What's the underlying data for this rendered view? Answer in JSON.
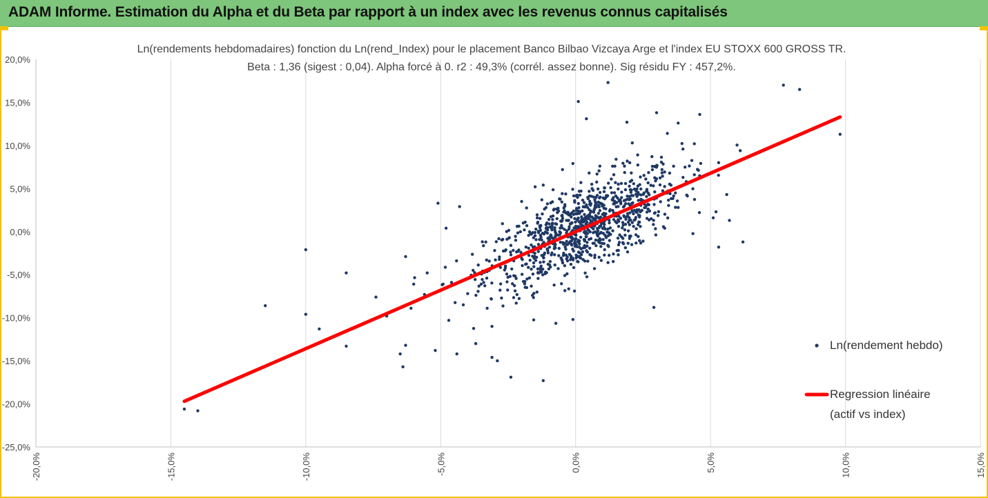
{
  "banner": {
    "title": "ADAM Informe. Estimation du Alpha et du Beta par rapport à un index avec les revenus connus capitalisés"
  },
  "colors": {
    "banner": "#7dc67b",
    "frame": "#f2c200",
    "points": "#1f3864",
    "regression": "#ff0000"
  },
  "chart_data": {
    "type": "scatter",
    "title": "Ln(rendements hebdomadaires) fonction du Ln(rend_Index)  pour le placement Banco Bilbao Vizcaya Arge et l'index EU STOXX 600 GROSS TR.",
    "subtitle": "Beta : 1,36 (sigest : 0,04).  Alpha forcé à 0. r2 : 49,3% (corrél. assez bonne). Sig résidu FY : 457,2%.",
    "xlabel": "",
    "ylabel": "",
    "xlim": [
      -20,
      15
    ],
    "ylim": [
      -25,
      20
    ],
    "x_ticks": [
      "-20,0%",
      "-15,0%",
      "-10,0%",
      "-5,0%",
      "0,0%",
      "5,0%",
      "10,0%",
      "15,0%"
    ],
    "y_ticks": [
      "20,0%",
      "15,0%",
      "10,0%",
      "5,0%",
      "0,0%",
      "-5,0%",
      "-10,0%",
      "-15,0%",
      "-20,0%",
      "-25,0%"
    ],
    "grid": "vertical",
    "legend_position": "right",
    "series": [
      {
        "name": "Ln(rendement hebdo)",
        "type": "scatter",
        "points": [
          [
            -14.5,
            -20.6
          ],
          [
            -14.0,
            -20.8
          ],
          [
            -11.5,
            -8.6
          ],
          [
            -10.0,
            -2.1
          ],
          [
            -10.0,
            -9.6
          ],
          [
            -9.5,
            -11.3
          ],
          [
            -8.5,
            -4.8
          ],
          [
            -8.5,
            -13.3
          ],
          [
            -7.4,
            -7.6
          ],
          [
            -7.0,
            -9.8
          ],
          [
            -6.5,
            -14.2
          ],
          [
            -6.4,
            -15.7
          ],
          [
            -6.3,
            -13.2
          ],
          [
            -6.3,
            -2.9
          ],
          [
            -6.1,
            -8.9
          ],
          [
            -5.5,
            -4.8
          ],
          [
            -5.1,
            3.3
          ],
          [
            -4.8,
            0.4
          ],
          [
            -4.4,
            -14.2
          ],
          [
            -4.3,
            2.9
          ],
          [
            -5.2,
            -13.8
          ],
          [
            -4.7,
            -10.3
          ],
          [
            -3.7,
            -13.0
          ],
          [
            -3.1,
            -11.0
          ],
          [
            -3.1,
            -14.6
          ],
          [
            -2.9,
            -15.0
          ],
          [
            -2.4,
            -16.9
          ],
          [
            -1.2,
            -17.3
          ],
          [
            -0.1,
            -10.2
          ],
          [
            2.9,
            -8.8
          ],
          [
            0.1,
            15.1
          ],
          [
            0.4,
            13.1
          ],
          [
            3.0,
            13.8
          ],
          [
            4.6,
            13.6
          ],
          [
            9.8,
            11.3
          ],
          [
            7.7,
            17.0
          ],
          [
            8.3,
            16.5
          ],
          [
            1.2,
            17.3
          ],
          [
            6.1,
            9.4
          ],
          [
            5.3,
            8.0
          ],
          [
            5.1,
            1.6
          ],
          [
            5.6,
            4.3
          ],
          [
            5.7,
            1.3
          ],
          [
            6.2,
            -1.2
          ],
          [
            5.3,
            -1.8
          ],
          [
            3.4,
            11.4
          ],
          [
            3.8,
            12.6
          ],
          [
            2.1,
            10.3
          ],
          [
            1.9,
            12.7
          ],
          [
            4.4,
            10.2
          ],
          [
            -2.0,
            3.5
          ],
          [
            -1.5,
            5.2
          ],
          [
            -1.2,
            5.4
          ],
          [
            -3.5,
            -6.1
          ],
          [
            -2.8,
            -6.8
          ],
          [
            -2.0,
            -3.1
          ],
          [
            -1.8,
            -5.5
          ],
          [
            -1.3,
            -4.2
          ],
          [
            -0.9,
            -2.7
          ],
          [
            -0.7,
            -0.4
          ],
          [
            -0.5,
            1.9
          ],
          [
            -0.3,
            -1.5
          ],
          [
            -0.2,
            0.9
          ],
          [
            0.0,
            -0.3
          ],
          [
            0.1,
            2.4
          ],
          [
            0.2,
            -2.0
          ],
          [
            0.3,
            0.6
          ],
          [
            0.4,
            3.1
          ],
          [
            0.5,
            -0.9
          ],
          [
            0.6,
            1.7
          ],
          [
            0.8,
            4.2
          ],
          [
            0.9,
            -1.3
          ],
          [
            1.0,
            2.0
          ],
          [
            1.1,
            0.3
          ],
          [
            1.3,
            5.1
          ],
          [
            1.4,
            -2.6
          ],
          [
            1.6,
            1.2
          ],
          [
            1.8,
            3.6
          ],
          [
            2.0,
            0.8
          ],
          [
            2.2,
            4.9
          ],
          [
            2.4,
            2.3
          ],
          [
            2.6,
            6.1
          ],
          [
            2.8,
            1.5
          ],
          [
            3.0,
            3.9
          ],
          [
            3.2,
            7.2
          ],
          [
            3.5,
            4.4
          ],
          [
            3.8,
            2.8
          ],
          [
            4.1,
            5.8
          ],
          [
            4.4,
            6.6
          ],
          [
            -0.6,
            3.8
          ],
          [
            -1.0,
            -0.8
          ],
          [
            -1.4,
            1.1
          ],
          [
            -2.4,
            -1.6
          ],
          [
            -2.6,
            -4.0
          ],
          [
            -3.0,
            -2.2
          ],
          [
            -3.8,
            -4.5
          ],
          [
            -4.0,
            -7.2
          ],
          [
            -4.6,
            -5.9
          ],
          [
            -5.6,
            -7.3
          ],
          [
            -6.0,
            -6.1
          ],
          [
            0.7,
            -4.3
          ],
          [
            1.2,
            -3.6
          ],
          [
            -0.4,
            -5.1
          ],
          [
            -1.6,
            -7.4
          ],
          [
            -2.2,
            -8.3
          ],
          [
            0.5,
            6.8
          ],
          [
            0.9,
            7.6
          ],
          [
            -0.1,
            7.9
          ],
          [
            1.5,
            8.4
          ],
          [
            2.3,
            8.9
          ],
          [
            0.2,
            4.7
          ],
          [
            -0.8,
            2.6
          ],
          [
            1.7,
            -0.6
          ],
          [
            2.5,
            -1.1
          ],
          [
            3.3,
            0.4
          ],
          [
            -1.9,
            0.2
          ],
          [
            -2.7,
            -0.9
          ],
          [
            -3.3,
            -3.3
          ],
          [
            -0.3,
            -3.4
          ],
          [
            0.6,
            5.5
          ]
        ]
      },
      {
        "name": "Regression linéaire",
        "name_line2": "(actif vs index)",
        "type": "line",
        "x": [
          -14.5,
          9.8
        ],
        "y": [
          -19.7,
          13.3
        ]
      }
    ]
  }
}
